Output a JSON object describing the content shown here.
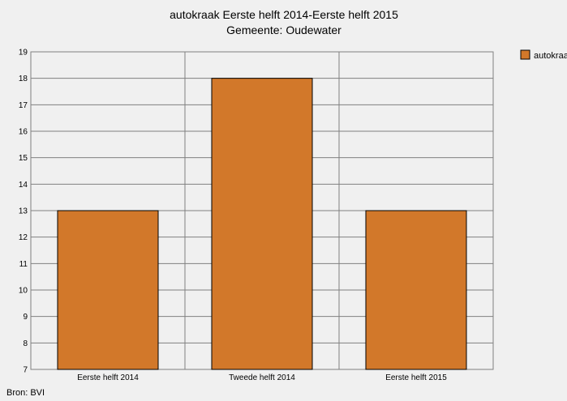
{
  "chart_data": {
    "type": "bar",
    "title": "autokraak Eerste helft 2014-Eerste helft 2015",
    "subtitle": "Gemeente: Oudewater",
    "categories": [
      "Eerste helft 2014",
      "Tweede helft 2014",
      "Eerste helft 2015"
    ],
    "series": [
      {
        "name": "autokraak",
        "values": [
          13,
          18,
          13
        ],
        "color": "#d2782a"
      }
    ],
    "xlabel": "",
    "ylabel": "",
    "ylim": [
      7,
      19
    ],
    "yticks": [
      "7",
      "8",
      "9",
      "10",
      "11",
      "12",
      "13",
      "14",
      "15",
      "16",
      "17",
      "18",
      "19"
    ],
    "grid": true,
    "legend_position": "top-right"
  },
  "source": "Bron: BVI"
}
